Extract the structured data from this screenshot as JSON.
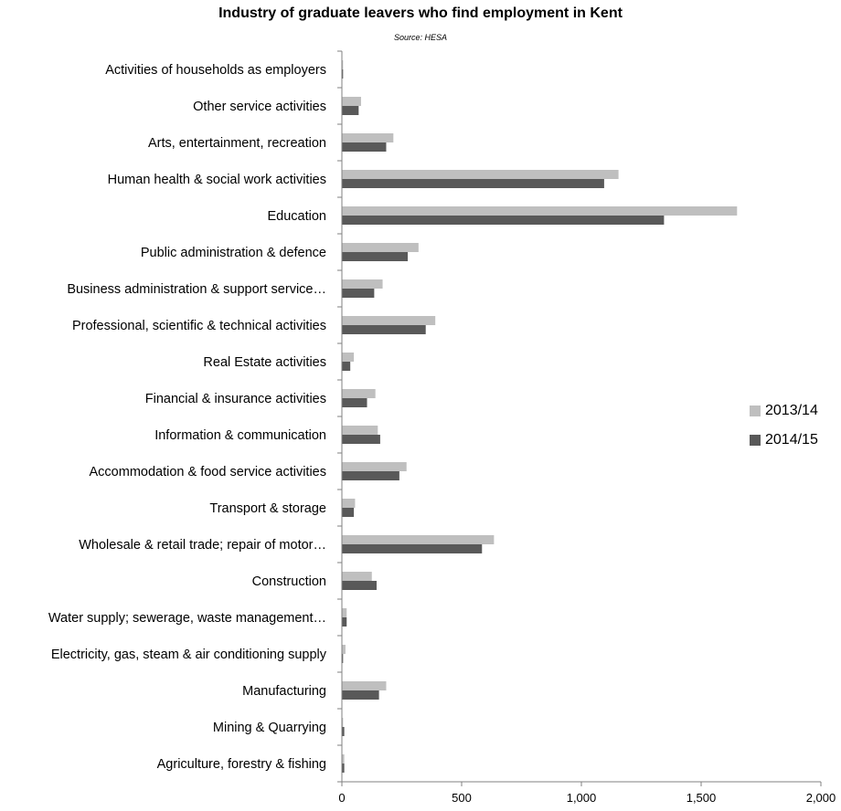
{
  "chart_data": {
    "type": "bar",
    "orientation": "horizontal",
    "title": "Industry of graduate leavers who find employment in Kent",
    "subtitle": "Source: HESA",
    "categories": [
      "Activities of households as employers",
      "Other service activities",
      "Arts, entertainment, recreation",
      "Human health & social work activities",
      "Education",
      "Public administration & defence",
      "Business administration & support service…",
      "Professional, scientific & technical activities",
      "Real Estate activities",
      "Financial & insurance activities",
      "Information & communication",
      "Accommodation & food service activities",
      "Transport & storage",
      "Wholesale & retail trade; repair of motor…",
      "Construction",
      "Water supply; sewerage, waste management…",
      "Electricity, gas, steam & air conditioning supply",
      "Manufacturing",
      "Mining & Quarrying",
      "Agriculture, forestry & fishing"
    ],
    "series": [
      {
        "name": "2013/14",
        "color": "#bfbfbf",
        "values": [
          5,
          80,
          215,
          1155,
          1650,
          320,
          170,
          390,
          50,
          140,
          150,
          270,
          55,
          635,
          125,
          20,
          15,
          185,
          5,
          10
        ]
      },
      {
        "name": "2014/15",
        "color": "#595959",
        "values": [
          5,
          70,
          185,
          1095,
          1345,
          275,
          135,
          350,
          35,
          105,
          160,
          240,
          50,
          585,
          145,
          20,
          5,
          155,
          10,
          10
        ]
      }
    ],
    "xlim": [
      0,
      2000
    ],
    "xticks": [
      0,
      500,
      1000,
      1500,
      2000
    ],
    "xtick_labels": [
      "0",
      "500",
      "1,000",
      "1,500",
      "2,000"
    ],
    "grid": false,
    "legend_position": "right"
  }
}
